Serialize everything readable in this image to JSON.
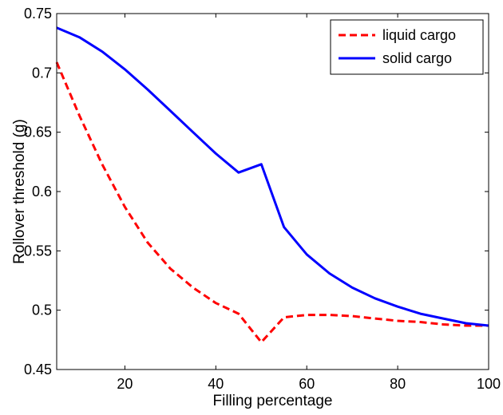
{
  "chart_data": {
    "type": "line",
    "title": "",
    "xlabel": "Filling percentage",
    "ylabel": "Rollover threshold (g)",
    "xlim": [
      5,
      100
    ],
    "ylim": [
      0.45,
      0.75
    ],
    "xticks": [
      20,
      40,
      60,
      80,
      100
    ],
    "xtick_labels": [
      "20",
      "40",
      "60",
      "80",
      "100"
    ],
    "yticks": [
      0.45,
      0.5,
      0.55,
      0.6,
      0.65,
      0.7,
      0.75
    ],
    "ytick_labels": [
      "0.45",
      "0.5",
      "0.55",
      "0.6",
      "0.65",
      "0.7",
      "0.75"
    ],
    "grid": false,
    "legend_position": "top-right",
    "series": [
      {
        "name": "liquid cargo",
        "color": "#ff0000",
        "style": "dashed",
        "x": [
          5,
          10,
          15,
          20,
          25,
          30,
          35,
          40,
          45,
          50,
          55,
          60,
          65,
          70,
          75,
          80,
          85,
          90,
          95,
          100
        ],
        "y": [
          0.709,
          0.664,
          0.623,
          0.587,
          0.557,
          0.535,
          0.519,
          0.506,
          0.497,
          0.473,
          0.494,
          0.496,
          0.496,
          0.495,
          0.493,
          0.491,
          0.49,
          0.488,
          0.487,
          0.487
        ]
      },
      {
        "name": "solid cargo",
        "color": "#0000ff",
        "style": "solid",
        "x": [
          5,
          10,
          15,
          20,
          25,
          30,
          35,
          40,
          45,
          50,
          55,
          60,
          65,
          70,
          75,
          80,
          85,
          90,
          95,
          100
        ],
        "y": [
          0.738,
          0.73,
          0.718,
          0.703,
          0.686,
          0.668,
          0.65,
          0.632,
          0.616,
          0.623,
          0.57,
          0.547,
          0.531,
          0.519,
          0.51,
          0.503,
          0.497,
          0.493,
          0.489,
          0.487
        ]
      }
    ]
  }
}
